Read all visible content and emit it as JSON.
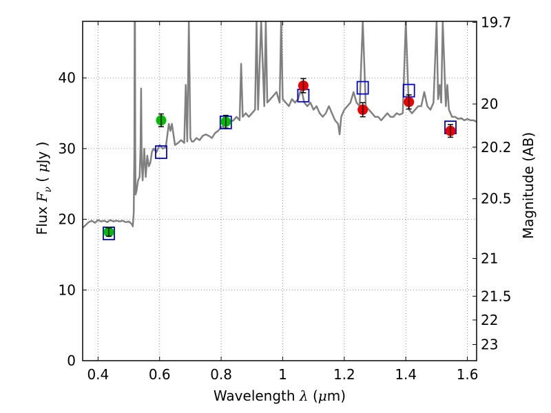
{
  "chart_data": {
    "type": "line",
    "xlabel": {
      "prefix": "Wavelength  ",
      "symbol": "λ",
      "suffix": " (",
      "unit_symbol": "μ",
      "unit_rest": "m)"
    },
    "ylabel": {
      "prefix": "Flux  ",
      "symbol": "F",
      "subscript": "ν",
      "suffix": "  (  ",
      "unit_symbol": "μ",
      "unit_rest": "Jy  )"
    },
    "y2label": "Magnitude (AB)",
    "xlim": [
      0.35,
      1.63
    ],
    "ylim": [
      0,
      48
    ],
    "x_ticks": [
      0.4,
      0.6,
      0.8,
      1.0,
      1.2,
      1.4,
      1.6
    ],
    "x_tick_labels": [
      "0.4",
      "0.6",
      "0.8",
      "1",
      "1.2",
      "1.4",
      "1.6"
    ],
    "y_ticks": [
      0,
      10,
      20,
      30,
      40
    ],
    "y_tick_labels": [
      "0",
      "10",
      "20",
      "30",
      "40"
    ],
    "mag_ticks": [
      19.7,
      20,
      20.2,
      20.5,
      21,
      21.5,
      22,
      23
    ],
    "mag_tick_labels": [
      "19.7",
      "20",
      "20.2",
      "20.5",
      "21",
      "21.5",
      "22",
      "23"
    ],
    "grid": true,
    "colors": {
      "spectrum": "#808080",
      "observed_optical": "#00bb00",
      "observed_nir": "#ee0000",
      "model": "#0000cc",
      "errorbar": "#000000",
      "grid": "#888888"
    },
    "series": [
      {
        "style": "line",
        "x": [
          0.35,
          0.36,
          0.37,
          0.38,
          0.39,
          0.4,
          0.41,
          0.42,
          0.43,
          0.44,
          0.45,
          0.46,
          0.47,
          0.48,
          0.49,
          0.5,
          0.51,
          0.513,
          0.516,
          0.518,
          0.519,
          0.52,
          0.521,
          0.522,
          0.525,
          0.53,
          0.535,
          0.538,
          0.54,
          0.542,
          0.545,
          0.55,
          0.555,
          0.56,
          0.565,
          0.57,
          0.575,
          0.58,
          0.59,
          0.6,
          0.61,
          0.62,
          0.63,
          0.635,
          0.64,
          0.65,
          0.66,
          0.67,
          0.68,
          0.685,
          0.69,
          0.695,
          0.7,
          0.705,
          0.71,
          0.72,
          0.73,
          0.74,
          0.75,
          0.76,
          0.77,
          0.78,
          0.79,
          0.8,
          0.81,
          0.82,
          0.83,
          0.84,
          0.85,
          0.86,
          0.865,
          0.87,
          0.88,
          0.89,
          0.9,
          0.91,
          0.915,
          0.92,
          0.93,
          0.94,
          0.945,
          0.95,
          0.96,
          0.97,
          0.98,
          0.99,
          0.995,
          1.0,
          1.01,
          1.02,
          1.03,
          1.04,
          1.05,
          1.06,
          1.07,
          1.08,
          1.09,
          1.1,
          1.11,
          1.12,
          1.13,
          1.14,
          1.15,
          1.16,
          1.17,
          1.18,
          1.185,
          1.19,
          1.2,
          1.21,
          1.22,
          1.23,
          1.24,
          1.25,
          1.26,
          1.27,
          1.28,
          1.29,
          1.3,
          1.31,
          1.32,
          1.33,
          1.34,
          1.35,
          1.36,
          1.37,
          1.38,
          1.39,
          1.4,
          1.41,
          1.42,
          1.43,
          1.44,
          1.45,
          1.46,
          1.47,
          1.48,
          1.49,
          1.5,
          1.505,
          1.51,
          1.515,
          1.52,
          1.53,
          1.535,
          1.54,
          1.55,
          1.56,
          1.57,
          1.58,
          1.59,
          1.6,
          1.61,
          1.62,
          1.63
        ],
        "y": [
          18.8,
          19.2,
          19.6,
          19.8,
          19.5,
          19.9,
          19.7,
          19.8,
          19.6,
          19.9,
          19.7,
          19.8,
          19.7,
          19.8,
          19.6,
          19.7,
          19.3,
          19.0,
          21.0,
          30.0,
          48.0,
          48.0,
          30.0,
          23.5,
          24.0,
          25.5,
          26.0,
          30.0,
          38.5,
          28.0,
          25.5,
          30.0,
          26.0,
          29.0,
          27.5,
          28.0,
          29.5,
          30.0,
          29.5,
          30.5,
          30.0,
          30.2,
          33.5,
          32.5,
          33.5,
          30.5,
          30.8,
          31.2,
          30.8,
          39.0,
          31.0,
          48.0,
          31.5,
          31.0,
          31.0,
          31.5,
          31.2,
          31.8,
          32.0,
          31.8,
          31.5,
          32.2,
          32.5,
          33.0,
          33.2,
          33.5,
          33.8,
          34.0,
          34.5,
          34.0,
          42.0,
          34.5,
          35.0,
          34.5,
          35.0,
          35.5,
          48.0,
          35.5,
          48.0,
          36.0,
          48.0,
          36.5,
          37.0,
          37.5,
          38.0,
          36.5,
          48.0,
          37.0,
          36.5,
          36.0,
          37.0,
          36.5,
          37.0,
          38.5,
          36.5,
          36.0,
          36.5,
          35.5,
          36.0,
          35.0,
          34.5,
          35.0,
          36.0,
          35.0,
          34.0,
          33.5,
          32.0,
          34.5,
          35.5,
          36.0,
          36.5,
          38.0,
          36.5,
          36.0,
          48.0,
          36.0,
          35.5,
          35.0,
          34.5,
          34.5,
          34.0,
          34.5,
          35.0,
          34.5,
          34.5,
          35.0,
          34.8,
          35.0,
          48.0,
          35.5,
          35.0,
          35.5,
          36.0,
          36.0,
          38.0,
          36.0,
          35.5,
          36.5,
          48.0,
          37.0,
          39.0,
          36.5,
          48.0,
          36.0,
          39.0,
          35.5,
          34.5,
          34.5,
          34.2,
          34.3,
          34.0,
          34.2,
          34.0,
          34.0,
          33.8
        ]
      },
      {
        "style": "errorbar-circle",
        "x": [
          0.435,
          0.605,
          0.815
        ],
        "y": [
          18.2,
          34.0,
          33.8
        ],
        "yerr": [
          0.6,
          0.9,
          0.9
        ]
      },
      {
        "style": "errorbar-circle",
        "x": [
          1.067,
          1.26,
          1.41,
          1.545
        ],
        "y": [
          38.9,
          35.5,
          36.6,
          32.5
        ],
        "yerr": [
          1.0,
          1.0,
          1.0,
          0.9
        ]
      },
      {
        "style": "open-square",
        "x": [
          0.435,
          0.605,
          0.815,
          1.067,
          1.26,
          1.41,
          1.545
        ],
        "y": [
          18.0,
          29.5,
          33.7,
          37.5,
          38.6,
          38.2,
          33.0
        ]
      }
    ]
  }
}
